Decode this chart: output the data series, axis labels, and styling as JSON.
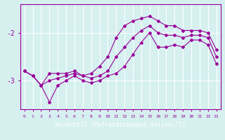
{
  "title": "",
  "xlabel": "Windchill (Refroidissement éolien,°C)",
  "ylabel": "",
  "bg_color": "#d6f0f0",
  "line_color": "#990099",
  "grid_color": "#ffffff",
  "label_bg": "#880088",
  "hours": [
    0,
    1,
    2,
    3,
    4,
    5,
    6,
    7,
    8,
    9,
    10,
    11,
    12,
    13,
    14,
    15,
    16,
    17,
    18,
    19,
    20,
    21,
    22,
    23
  ],
  "mean": [
    -2.8,
    -2.9,
    -3.1,
    -3.0,
    -2.95,
    -2.9,
    -2.85,
    -2.9,
    -2.95,
    -2.9,
    -2.8,
    -2.5,
    -2.3,
    -2.1,
    -1.95,
    -1.85,
    -2.0,
    -2.05,
    -2.05,
    -2.1,
    -2.05,
    -2.05,
    -2.1,
    -2.5
  ],
  "max_vals": [
    -2.8,
    -2.9,
    -3.1,
    -2.85,
    -2.85,
    -2.85,
    -2.8,
    -2.9,
    -2.85,
    -2.7,
    -2.5,
    -2.1,
    -1.85,
    -1.75,
    -1.7,
    -1.65,
    -1.75,
    -1.85,
    -1.85,
    -1.95,
    -1.95,
    -1.95,
    -2.0,
    -2.35
  ],
  "min_vals": [
    -2.8,
    -2.9,
    -3.1,
    -3.45,
    -3.1,
    -3.0,
    -2.9,
    -3.0,
    -3.05,
    -3.0,
    -2.9,
    -2.85,
    -2.7,
    -2.45,
    -2.2,
    -2.0,
    -2.3,
    -2.3,
    -2.25,
    -2.3,
    -2.15,
    -2.15,
    -2.25,
    -2.65
  ],
  "ylim_min": -3.6,
  "ylim_max": -1.4,
  "yticks": [
    -3.0,
    -2.0
  ],
  "ytick_labels": [
    "-3",
    "-2"
  ],
  "xlim_min": -0.5,
  "xlim_max": 23.5,
  "figsize": [
    3.2,
    2.0
  ],
  "dpi": 100
}
